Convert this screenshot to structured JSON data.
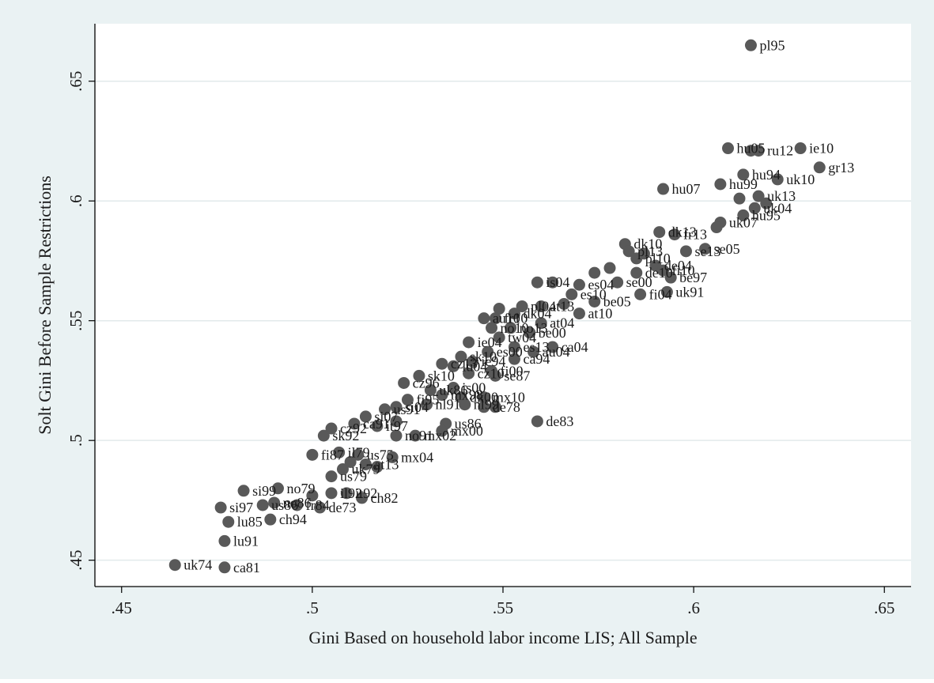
{
  "chart_data": {
    "type": "scatter",
    "title": "",
    "xlabel": "Gini Based on household labor income LIS; All Sample",
    "ylabel": "Solt Gini Before Sample Restrictions",
    "xlim": [
      0.443,
      0.657
    ],
    "ylim": [
      0.439,
      0.674
    ],
    "xticks": [
      0.45,
      0.5,
      0.55,
      0.6,
      0.65
    ],
    "xtick_labels": [
      ".45",
      ".5",
      ".55",
      ".6",
      ".65"
    ],
    "yticks": [
      0.45,
      0.5,
      0.55,
      0.6,
      0.65
    ],
    "ytick_labels": [
      ".45",
      ".5",
      ".55",
      ".6",
      ".65"
    ],
    "grid": "horizontal",
    "marker_color": "#595959",
    "background": "#eaf2f3",
    "plot_background": "#ffffff",
    "gridline_color": "#e2eaeb",
    "points": [
      {
        "x": 0.615,
        "y": 0.665,
        "label": "pl95"
      },
      {
        "x": 0.628,
        "y": 0.622,
        "label": "ie10"
      },
      {
        "x": 0.609,
        "y": 0.622,
        "label": "hu05"
      },
      {
        "x": 0.615,
        "y": 0.621,
        "label": ""
      },
      {
        "x": 0.617,
        "y": 0.621,
        "label": "ru12"
      },
      {
        "x": 0.633,
        "y": 0.614,
        "label": "gr13"
      },
      {
        "x": 0.613,
        "y": 0.611,
        "label": "hu94"
      },
      {
        "x": 0.622,
        "y": 0.609,
        "label": "uk10"
      },
      {
        "x": 0.607,
        "y": 0.607,
        "label": "hu99"
      },
      {
        "x": 0.592,
        "y": 0.605,
        "label": "hu07"
      },
      {
        "x": 0.612,
        "y": 0.601,
        "label": ""
      },
      {
        "x": 0.617,
        "y": 0.602,
        "label": "uk13"
      },
      {
        "x": 0.619,
        "y": 0.599,
        "label": ""
      },
      {
        "x": 0.616,
        "y": 0.597,
        "label": "uk04"
      },
      {
        "x": 0.613,
        "y": 0.594,
        "label": "hu95"
      },
      {
        "x": 0.607,
        "y": 0.591,
        "label": "uk07"
      },
      {
        "x": 0.606,
        "y": 0.589,
        "label": ""
      },
      {
        "x": 0.591,
        "y": 0.587,
        "label": "dk13"
      },
      {
        "x": 0.595,
        "y": 0.586,
        "label": "fr13"
      },
      {
        "x": 0.582,
        "y": 0.582,
        "label": "dk10"
      },
      {
        "x": 0.603,
        "y": 0.58,
        "label": "se05"
      },
      {
        "x": 0.598,
        "y": 0.579,
        "label": "se13"
      },
      {
        "x": 0.587,
        "y": 0.578,
        "label": ""
      },
      {
        "x": 0.583,
        "y": 0.579,
        "label": "pl13"
      },
      {
        "x": 0.585,
        "y": 0.576,
        "label": "pl10"
      },
      {
        "x": 0.59,
        "y": 0.573,
        "label": "de04"
      },
      {
        "x": 0.578,
        "y": 0.572,
        "label": ""
      },
      {
        "x": 0.585,
        "y": 0.57,
        "label": "de10"
      },
      {
        "x": 0.594,
        "y": 0.568,
        "label": "be97"
      },
      {
        "x": 0.592,
        "y": 0.571,
        "label": "fi10"
      },
      {
        "x": 0.574,
        "y": 0.57,
        "label": ""
      },
      {
        "x": 0.58,
        "y": 0.566,
        "label": "se00"
      },
      {
        "x": 0.57,
        "y": 0.565,
        "label": "es04"
      },
      {
        "x": 0.593,
        "y": 0.562,
        "label": "uk91"
      },
      {
        "x": 0.586,
        "y": 0.561,
        "label": "fi04"
      },
      {
        "x": 0.559,
        "y": 0.566,
        "label": "is04"
      },
      {
        "x": 0.563,
        "y": 0.566,
        "label": ""
      },
      {
        "x": 0.568,
        "y": 0.561,
        "label": "es10"
      },
      {
        "x": 0.574,
        "y": 0.558,
        "label": "be05"
      },
      {
        "x": 0.566,
        "y": 0.557,
        "label": ""
      },
      {
        "x": 0.56,
        "y": 0.556,
        "label": "at13"
      },
      {
        "x": 0.555,
        "y": 0.556,
        "label": "pl04"
      },
      {
        "x": 0.549,
        "y": 0.555,
        "label": ""
      },
      {
        "x": 0.553,
        "y": 0.553,
        "label": "dk04"
      },
      {
        "x": 0.545,
        "y": 0.551,
        "label": "au10"
      },
      {
        "x": 0.548,
        "y": 0.551,
        "label": "fr10"
      },
      {
        "x": 0.57,
        "y": 0.553,
        "label": "at10"
      },
      {
        "x": 0.56,
        "y": 0.549,
        "label": "at04"
      },
      {
        "x": 0.547,
        "y": 0.547,
        "label": "no10"
      },
      {
        "x": 0.552,
        "y": 0.547,
        "label": "no13"
      },
      {
        "x": 0.557,
        "y": 0.545,
        "label": "be00"
      },
      {
        "x": 0.549,
        "y": 0.543,
        "label": "tw04"
      },
      {
        "x": 0.541,
        "y": 0.541,
        "label": "ie04"
      },
      {
        "x": 0.553,
        "y": 0.539,
        "label": "es13"
      },
      {
        "x": 0.563,
        "y": 0.539,
        "label": "ca04"
      },
      {
        "x": 0.558,
        "y": 0.537,
        "label": "au04"
      },
      {
        "x": 0.546,
        "y": 0.537,
        "label": "es00"
      },
      {
        "x": 0.553,
        "y": 0.534,
        "label": "ca94"
      },
      {
        "x": 0.539,
        "y": 0.535,
        "label": "sk10"
      },
      {
        "x": 0.542,
        "y": 0.533,
        "label": "ie94"
      },
      {
        "x": 0.534,
        "y": 0.532,
        "label": "cz13"
      },
      {
        "x": 0.537,
        "y": 0.531,
        "label": "lu04"
      },
      {
        "x": 0.547,
        "y": 0.529,
        "label": "fi00"
      },
      {
        "x": 0.548,
        "y": 0.527,
        "label": "se87"
      },
      {
        "x": 0.528,
        "y": 0.527,
        "label": "sk10"
      },
      {
        "x": 0.541,
        "y": 0.528,
        "label": "cz10"
      },
      {
        "x": 0.524,
        "y": 0.524,
        "label": "cz96"
      },
      {
        "x": 0.537,
        "y": 0.522,
        "label": "is00"
      },
      {
        "x": 0.531,
        "y": 0.521,
        "label": "uk86"
      },
      {
        "x": 0.534,
        "y": 0.519,
        "label": "mx98"
      },
      {
        "x": 0.539,
        "y": 0.518,
        "label": "dk00"
      },
      {
        "x": 0.545,
        "y": 0.518,
        "label": "mx10"
      },
      {
        "x": 0.525,
        "y": 0.517,
        "label": "fi95"
      },
      {
        "x": 0.53,
        "y": 0.515,
        "label": "nl91"
      },
      {
        "x": 0.54,
        "y": 0.515,
        "label": "nl99"
      },
      {
        "x": 0.545,
        "y": 0.514,
        "label": "de78"
      },
      {
        "x": 0.548,
        "y": 0.514,
        "label": ""
      },
      {
        "x": 0.522,
        "y": 0.514,
        "label": "si04"
      },
      {
        "x": 0.519,
        "y": 0.513,
        "label": "us91"
      },
      {
        "x": 0.514,
        "y": 0.51,
        "label": "si07"
      },
      {
        "x": 0.511,
        "y": 0.507,
        "label": "ca91"
      },
      {
        "x": 0.522,
        "y": 0.508,
        "label": ""
      },
      {
        "x": 0.535,
        "y": 0.507,
        "label": "us86"
      },
      {
        "x": 0.517,
        "y": 0.506,
        "label": "it97"
      },
      {
        "x": 0.559,
        "y": 0.508,
        "label": "de83"
      },
      {
        "x": 0.505,
        "y": 0.505,
        "label": "cz92"
      },
      {
        "x": 0.534,
        "y": 0.504,
        "label": "mx00"
      },
      {
        "x": 0.527,
        "y": 0.502,
        "label": "mx02"
      },
      {
        "x": 0.503,
        "y": 0.502,
        "label": "sk92"
      },
      {
        "x": 0.522,
        "y": 0.502,
        "label": "no91"
      },
      {
        "x": 0.5,
        "y": 0.494,
        "label": "fi87"
      },
      {
        "x": 0.507,
        "y": 0.495,
        "label": "il79"
      },
      {
        "x": 0.512,
        "y": 0.494,
        "label": "us75"
      },
      {
        "x": 0.521,
        "y": 0.493,
        "label": "mx04"
      },
      {
        "x": 0.51,
        "y": 0.491,
        "label": ""
      },
      {
        "x": 0.514,
        "y": 0.49,
        "label": "at13"
      },
      {
        "x": 0.517,
        "y": 0.489,
        "label": ""
      },
      {
        "x": 0.508,
        "y": 0.488,
        "label": "uk79"
      },
      {
        "x": 0.505,
        "y": 0.485,
        "label": "us79"
      },
      {
        "x": 0.482,
        "y": 0.479,
        "label": "si99"
      },
      {
        "x": 0.491,
        "y": 0.48,
        "label": "no79"
      },
      {
        "x": 0.509,
        "y": 0.478,
        "label": "it92"
      },
      {
        "x": 0.505,
        "y": 0.478,
        "label": "il92"
      },
      {
        "x": 0.5,
        "y": 0.477,
        "label": ""
      },
      {
        "x": 0.513,
        "y": 0.476,
        "label": "ch82"
      },
      {
        "x": 0.49,
        "y": 0.474,
        "label": "no86"
      },
      {
        "x": 0.487,
        "y": 0.473,
        "label": "us86"
      },
      {
        "x": 0.496,
        "y": 0.473,
        "label": "fr84"
      },
      {
        "x": 0.476,
        "y": 0.472,
        "label": "si97"
      },
      {
        "x": 0.502,
        "y": 0.472,
        "label": "de73"
      },
      {
        "x": 0.478,
        "y": 0.466,
        "label": "lu85"
      },
      {
        "x": 0.489,
        "y": 0.467,
        "label": "ch94"
      },
      {
        "x": 0.477,
        "y": 0.458,
        "label": "lu91"
      },
      {
        "x": 0.464,
        "y": 0.448,
        "label": "uk74"
      },
      {
        "x": 0.477,
        "y": 0.447,
        "label": "ca81"
      }
    ]
  }
}
